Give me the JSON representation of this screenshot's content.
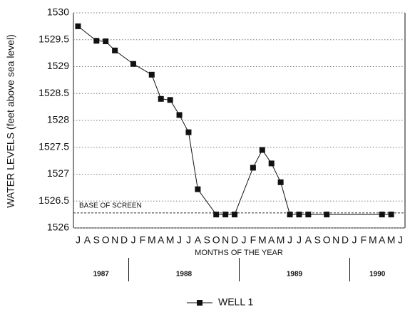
{
  "chart_data": {
    "type": "line",
    "y_label": "WATER LEVELS (feet above sea level)",
    "x_label": "MONTHS OF THE YEAR",
    "categories": [
      "J",
      "A",
      "S",
      "O",
      "N",
      "D",
      "J",
      "F",
      "M",
      "A",
      "M",
      "J",
      "J",
      "A",
      "S",
      "O",
      "N",
      "D",
      "J",
      "F",
      "M",
      "A",
      "M",
      "J",
      "J",
      "A",
      "S",
      "O",
      "N",
      "D",
      "J",
      "F",
      "M",
      "A",
      "M",
      "J"
    ],
    "years": [
      "1987",
      "1988",
      "1989",
      "1990"
    ],
    "series": [
      {
        "name": "WELL 1",
        "color": "#111111",
        "values": [
          1529.75,
          null,
          1529.48,
          1529.47,
          1529.3,
          null,
          1529.05,
          null,
          1528.85,
          1528.4,
          1528.38,
          1528.1,
          1527.78,
          1526.72,
          null,
          1526.25,
          1526.25,
          1526.25,
          null,
          1527.12,
          1527.45,
          1527.2,
          1526.85,
          1526.25,
          1526.25,
          1526.25,
          null,
          1526.25,
          null,
          null,
          null,
          null,
          null,
          1526.25,
          1526.25,
          null
        ]
      }
    ],
    "reference": {
      "label": "BASE OF SCREEN",
      "value": 1526.28
    },
    "ylim": [
      1526,
      1530
    ],
    "yticks": [
      1526,
      1526.5,
      1527,
      1527.5,
      1528,
      1528.5,
      1529,
      1529.5,
      1530
    ],
    "grid": true
  }
}
